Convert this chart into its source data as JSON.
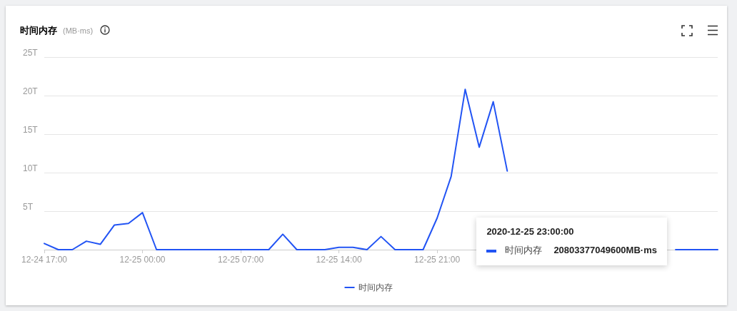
{
  "chart_data": {
    "type": "line",
    "title": "时间内存",
    "subtitle": "(MB·ms)",
    "x": [
      "2020-12-24T17:00",
      "2020-12-24T18:00",
      "2020-12-24T19:00",
      "2020-12-24T20:00",
      "2020-12-24T21:00",
      "2020-12-24T22:00",
      "2020-12-24T23:00",
      "2020-12-25T00:00",
      "2020-12-25T01:00",
      "2020-12-25T02:00",
      "2020-12-25T03:00",
      "2020-12-25T04:00",
      "2020-12-25T05:00",
      "2020-12-25T06:00",
      "2020-12-25T07:00",
      "2020-12-25T08:00",
      "2020-12-25T09:00",
      "2020-12-25T10:00",
      "2020-12-25T11:00",
      "2020-12-25T12:00",
      "2020-12-25T13:00",
      "2020-12-25T14:00",
      "2020-12-25T15:00",
      "2020-12-25T16:00",
      "2020-12-25T17:00",
      "2020-12-25T18:00",
      "2020-12-25T19:00",
      "2020-12-25T20:00",
      "2020-12-25T21:00",
      "2020-12-25T22:00",
      "2020-12-25T23:00",
      "2020-12-26T00:00",
      "2020-12-26T01:00",
      "2020-12-26T02:00",
      "2020-12-26T03:00",
      "2020-12-26T04:00",
      "2020-12-26T05:00",
      "2020-12-26T06:00",
      "2020-12-26T07:00",
      "2020-12-26T08:00",
      "2020-12-26T09:00",
      "2020-12-26T10:00",
      "2020-12-26T11:00",
      "2020-12-26T12:00",
      "2020-12-26T13:00",
      "2020-12-26T14:00",
      "2020-12-26T15:00",
      "2020-12-26T16:00",
      "2020-12-26T17:00"
    ],
    "series": [
      {
        "name": "时间内存",
        "color": "#2254f4",
        "values": [
          800000000000,
          0,
          0,
          1100000000000,
          700000000000,
          3200000000000,
          3400000000000,
          4800000000000,
          0,
          0,
          0,
          0,
          0,
          0,
          0,
          0,
          0,
          2000000000000,
          0,
          0,
          0,
          300000000000,
          300000000000,
          0,
          1700000000000,
          0,
          0,
          0,
          4100000000000,
          9500000000000,
          20803377049600,
          13300000000000,
          19200000000000,
          10200000000000,
          null,
          null,
          null,
          null,
          null,
          null,
          null,
          null,
          null,
          null,
          null,
          0,
          0,
          0,
          0
        ]
      }
    ],
    "xlim": [
      "2020-12-24T17:00",
      "2020-12-26T17:00"
    ],
    "xticks": [
      {
        "value": "2020-12-24T17:00",
        "label": "12-24 17:00"
      },
      {
        "value": "2020-12-25T00:00",
        "label": "12-25 00:00"
      },
      {
        "value": "2020-12-25T07:00",
        "label": "12-25 07:00"
      },
      {
        "value": "2020-12-25T14:00",
        "label": "12-25 14:00"
      },
      {
        "value": "2020-12-25T21:00",
        "label": "12-25 21:00"
      }
    ],
    "ylim": [
      0,
      25000000000000
    ],
    "yticks": [
      {
        "value": 0,
        "label": null
      },
      {
        "value": 5000000000000,
        "label": "5T"
      },
      {
        "value": 10000000000000,
        "label": "10T"
      },
      {
        "value": 15000000000000,
        "label": "15T"
      },
      {
        "value": 20000000000000,
        "label": "20T"
      },
      {
        "value": 25000000000000,
        "label": "25T"
      }
    ],
    "annotations": [
      "2020-12-25 23:00:00",
      "20803377049600MB·ms"
    ],
    "grid": "y",
    "legend": "bottom",
    "marker": "none",
    "line_style": "solid"
  }
}
